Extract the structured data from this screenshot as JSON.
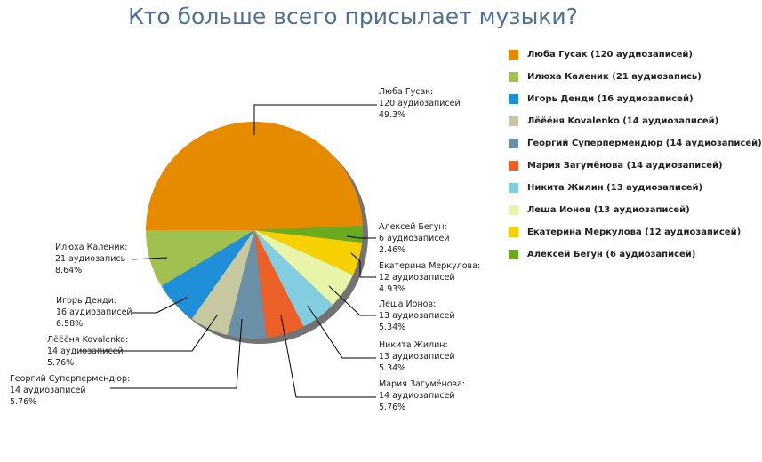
{
  "chart_data": {
    "type": "pie",
    "title": "Кто больше всего присылает музыки?",
    "slices": [
      {
        "name": "Люба Гусак",
        "value": 120,
        "count_text": "120 аудиозаписей",
        "percent_text": "49.3%",
        "legend": "Люба Гусак (120 аудиозаписей)",
        "color": "#e68a00"
      },
      {
        "name": "Алексей Бегун",
        "value": 6,
        "count_text": "6 аудиозаписей",
        "percent_text": "2.46%",
        "legend": "Алексей Бегун (6 аудиозаписей)",
        "color": "#6aaa1e"
      },
      {
        "name": "Екатерина Меркулова",
        "value": 12,
        "count_text": "12 аудиозаписей",
        "percent_text": "4.93%",
        "legend": "Екатерина Меркулова (12 аудиозаписей)",
        "color": "#f7d000"
      },
      {
        "name": "Леша Ионов",
        "value": 13,
        "count_text": "13 аудиозаписей",
        "percent_text": "5.34%",
        "legend": "Леша Ионов (13 аудиозаписей)",
        "color": "#e8f5a8"
      },
      {
        "name": "Никита Жилин",
        "value": 13,
        "count_text": "13 аудиозаписей",
        "percent_text": "5.34%",
        "legend": "Никита Жилин (13 аудиозаписей)",
        "color": "#82cde0"
      },
      {
        "name": "Мария Загумёнова",
        "value": 14,
        "count_text": "14 аудиозаписей",
        "percent_text": "5.76%",
        "legend": "Мария Загумёнова (14 аудиозаписей)",
        "color": "#ec5f26"
      },
      {
        "name": "Георгий Суперпермендюр",
        "value": 14,
        "count_text": "14 аудиозаписей",
        "percent_text": "5.76%",
        "legend": "Георгий Суперпермендюр (14 аудиозаписей)",
        "color": "#6a90a8"
      },
      {
        "name": "Лёёёня Kovalenko",
        "value": 14,
        "count_text": "14 аудиозаписей",
        "percent_text": "5.76%",
        "legend": "Лёёёня Kovalenko (14 аудиозаписей)",
        "color": "#c8c8a0"
      },
      {
        "name": "Игорь Денди",
        "value": 16,
        "count_text": "16 аудиозаписей",
        "percent_text": "6.58%",
        "legend": "Игорь Денди (16 аудиозаписей)",
        "color": "#1e8fd8"
      },
      {
        "name": "Илюха Каленик",
        "value": 21,
        "count_text": "21 аудиозапись",
        "percent_text": "8.64%",
        "legend": "Илюха Каленик (21 аудиозапись)",
        "color": "#a0c050"
      }
    ],
    "legend_order": [
      "Люба Гусак (120 аудиозаписей)",
      "Илюха Каленик (21 аудиозапись)",
      "Игорь Денди (16 аудиозаписей)",
      "Лёёёня Kovalenko (14 аудиозаписей)",
      "Георгий Суперпермендюр (14 аудиозаписей)",
      "Мария Загумёнова (14 аудиозаписей)",
      "Никита Жилин (13 аудиозаписей)",
      "Леша Ионов (13 аудиозаписей)",
      "Екатерина Меркулова (12 аудиозаписей)",
      "Алексей Бегун (6 аудиозаписей)"
    ],
    "legend_placement": "right",
    "xlabel": "",
    "ylabel": ""
  }
}
